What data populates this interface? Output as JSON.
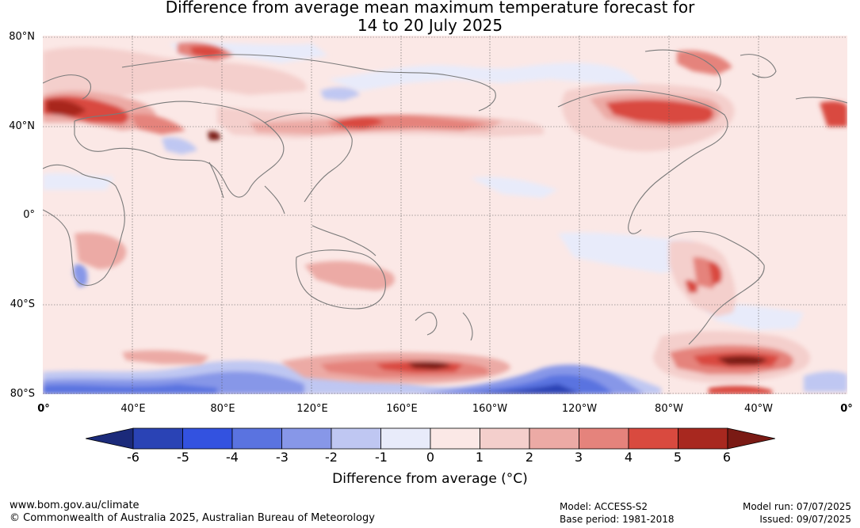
{
  "title": {
    "line1": "Difference from average mean maximum temperature forecast for",
    "line2": "14 to 20 July 2025"
  },
  "map": {
    "lat_labels": [
      "80°N",
      "40°N",
      "0°",
      "40°S",
      "80°S"
    ],
    "lon_labels": [
      "0°",
      "40°E",
      "80°E",
      "120°E",
      "160°E",
      "160°W",
      "120°W",
      "80°W",
      "40°W",
      "0°"
    ],
    "ocean_base_color": "#fbe8e6",
    "coastline_color": "#7a7a7a"
  },
  "colorbar": {
    "ticks": [
      "-6",
      "-5",
      "-4",
      "-3",
      "-2",
      "-1",
      "0",
      "1",
      "2",
      "3",
      "4",
      "5",
      "6"
    ],
    "colors": [
      "#1b2a7a",
      "#2a43b5",
      "#3352e0",
      "#5a73e0",
      "#8797e8",
      "#bfc7f2",
      "#e8ebfa",
      "#fbe8e6",
      "#f4cfcc",
      "#ecaaa5",
      "#e5837c",
      "#d94a3f",
      "#a8281f",
      "#7a1a14"
    ],
    "label": "Difference from average (°C)"
  },
  "footer": {
    "url": "www.bom.gov.au/climate",
    "copyright": "© Commonwealth of Australia 2025, Australian Bureau of Meteorology",
    "model": "Model: ACCESS-S2",
    "base_period": "Base period: 1981-2018",
    "model_run": "Model run: 07/07/2025",
    "issued": "Issued: 09/07/2025"
  }
}
